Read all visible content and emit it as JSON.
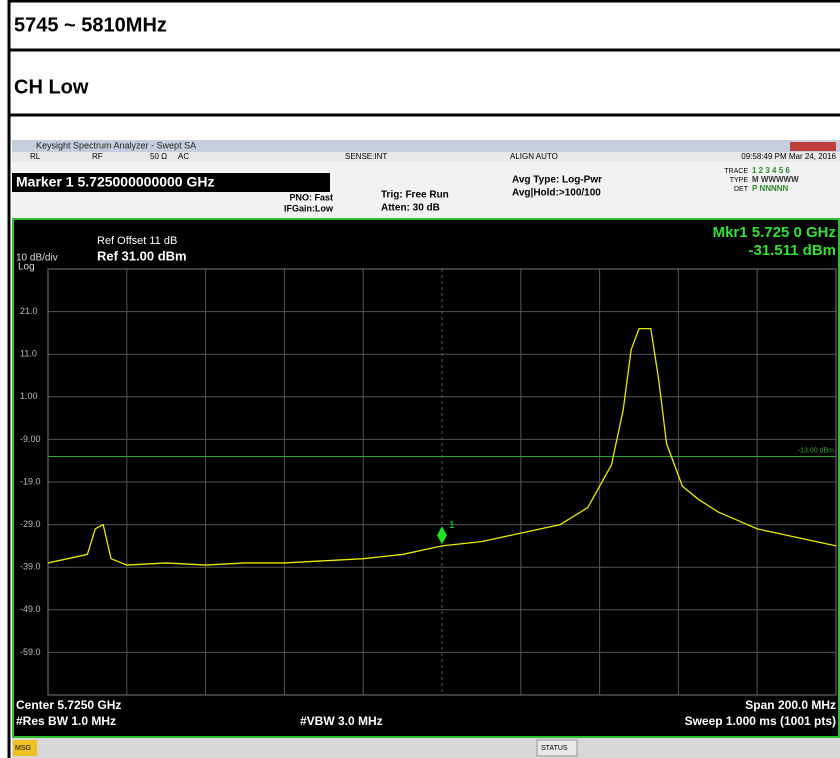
{
  "header": {
    "band": "5745 ~ 5810MHz",
    "channel": "CH Low"
  },
  "window": {
    "title": "Keysight Spectrum Analyzer - Swept SA",
    "status_row": {
      "rl": "RL",
      "rf": "RF",
      "impedance": "50 Ω",
      "coupling": "AC",
      "sense": "SENSE:INT",
      "align": "ALIGN AUTO",
      "time": "09:58:49 PM Mar 24, 2016"
    },
    "marker_readout": "Marker 1 5.725000000000 GHz",
    "pno": "PNO: Fast",
    "ifgain": "IFGain:Low",
    "trig": "Trig: Free Run",
    "atten": "Atten: 30 dB",
    "avg_type": "Avg Type: Log-Pwr",
    "avg_hold": "Avg|Hold:>100/100",
    "trace_labels": [
      "TRACE",
      "TYPE",
      "DET"
    ],
    "trace_values": [
      "1 2 3 4 5 6",
      "M WWWWW",
      "P NNNNN"
    ],
    "msg": "MSG",
    "status": "STATUS"
  },
  "chart_data": {
    "type": "line",
    "ref_offset": "Ref Offset 11 dB",
    "scale": "10 dB/div",
    "ref_level": "Ref 31.00 dBm",
    "scale_type": "Log",
    "marker_title": "Mkr1 5.725 0 GHz",
    "marker_value": "-31.511 dBm",
    "marker": {
      "label": "1",
      "x": 5.725,
      "y": -31.511
    },
    "limit_line": {
      "value": -13,
      "label": "-13.00 dBm",
      "color": "#2fa82f"
    },
    "center": "Center 5.7250 GHz",
    "rbw": "#Res BW 1.0 MHz",
    "vbw": "#VBW 3.0 MHz",
    "span": "Span 200.0 MHz",
    "sweep": "Sweep  1.000 ms (1001 pts)",
    "xlim": [
      5.625,
      5.825
    ],
    "xticks": [
      5.625,
      5.645,
      5.665,
      5.685,
      5.705,
      5.725,
      5.745,
      5.765,
      5.785,
      5.805,
      5.825
    ],
    "ylim": [
      -69,
      31
    ],
    "yticks": [
      {
        "value": 21,
        "label": "21.0"
      },
      {
        "value": 11,
        "label": "11.0"
      },
      {
        "value": 1,
        "label": "1.00"
      },
      {
        "value": -9,
        "label": "-9.00"
      },
      {
        "value": -19,
        "label": "-19.0"
      },
      {
        "value": -29,
        "label": "-29.0"
      },
      {
        "value": -39,
        "label": "-39.0"
      },
      {
        "value": -49,
        "label": "-49.0"
      },
      {
        "value": -59,
        "label": "-59.0"
      }
    ],
    "grid": true,
    "series": [
      {
        "color": "#e8e800",
        "x": [
          5.625,
          5.63,
          5.635,
          5.637,
          5.639,
          5.641,
          5.645,
          5.655,
          5.665,
          5.675,
          5.685,
          5.695,
          5.705,
          5.715,
          5.725,
          5.735,
          5.745,
          5.755,
          5.762,
          5.768,
          5.771,
          5.773,
          5.775,
          5.778,
          5.78,
          5.782,
          5.786,
          5.79,
          5.795,
          5.8,
          5.805,
          5.81,
          5.815,
          5.82,
          5.825
        ],
        "values": [
          -38,
          -37,
          -36,
          -30,
          -29,
          -37,
          -38.5,
          -38,
          -38.5,
          -38,
          -38,
          -37.5,
          -37,
          -36,
          -34,
          -33,
          -31,
          -29,
          -25,
          -15,
          -2,
          12,
          17,
          17,
          5,
          -10,
          -20,
          -23,
          -26,
          -28,
          -30,
          -31,
          -32,
          -33,
          -34
        ]
      }
    ]
  }
}
